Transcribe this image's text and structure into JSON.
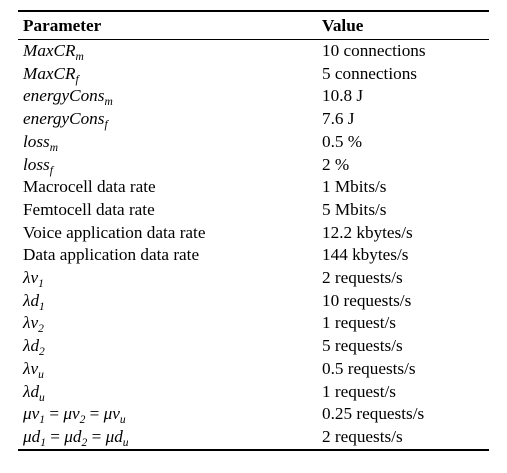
{
  "table": {
    "headers": [
      "Parameter",
      "Value"
    ],
    "rows": [
      {
        "parameter": "MaxCR_m",
        "value": "10 connections"
      },
      {
        "parameter": "MaxCR_f",
        "value": "5 connections"
      },
      {
        "parameter": "energyCons_m",
        "value": "10.8 J"
      },
      {
        "parameter": "energyCons_f",
        "value": "7.6 J"
      },
      {
        "parameter": "loss_m",
        "value": "0.5 %"
      },
      {
        "parameter": "loss_f",
        "value": "2 %"
      },
      {
        "parameter": "Macrocell data rate",
        "value": "1 Mbits/s"
      },
      {
        "parameter": "Femtocell data rate",
        "value": "5 Mbits/s"
      },
      {
        "parameter": "Voice application data rate",
        "value": "12.2 kbytes/s"
      },
      {
        "parameter": "Data application data rate",
        "value": "144 kbytes/s"
      },
      {
        "parameter": "λv_1",
        "value": "2 requests/s"
      },
      {
        "parameter": "λd_1",
        "value": "10 requests/s"
      },
      {
        "parameter": "λv_2",
        "value": "1 request/s"
      },
      {
        "parameter": "λd_2",
        "value": "5 requests/s"
      },
      {
        "parameter": "λv_u",
        "value": "0.5 requests/s"
      },
      {
        "parameter": "λd_u",
        "value": "1 request/s"
      },
      {
        "parameter": "μv_1 = μv_2 = μv_u",
        "value": "0.25 requests/s"
      },
      {
        "parameter": "μd_1 = μd_2 = μd_u",
        "value": "2 requests/s"
      }
    ]
  }
}
